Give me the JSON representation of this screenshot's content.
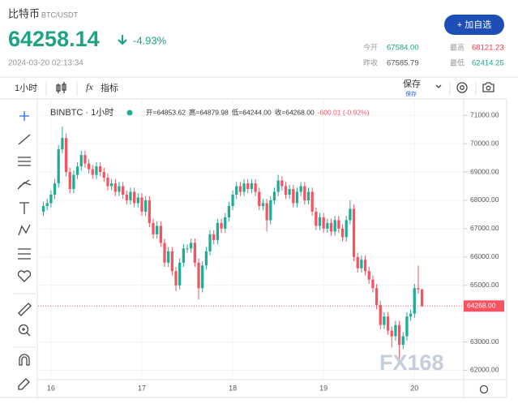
{
  "header": {
    "title": "比特币",
    "pair": "BTC/USDT",
    "price": "64258.14",
    "change": "-4.93%",
    "time": "2024-03-20 02:13:34",
    "button": "+ 加自选",
    "stats": [
      {
        "label": "今开",
        "value": "67584.00"
      },
      {
        "label": "最高",
        "value": "68121.23"
      },
      {
        "label": "昨收",
        "value": "67585.79"
      },
      {
        "label": "最低",
        "value": "62414.25"
      }
    ]
  },
  "toolbar": {
    "interval": "1小时",
    "indicator_icon": "fx",
    "indicators": "指标",
    "save": "保存",
    "save_sub": "保存"
  },
  "chart_data": {
    "type": "candlestick",
    "legend": {
      "symbol": "BINBTC · 1小时",
      "items": [
        "开=64853.62",
        "高=64879.98",
        "低=64244.00",
        "收=64268.00",
        "-600.01 (-0.92%)"
      ]
    },
    "up_color": "#22ab94",
    "down_color": "#f7525f",
    "grid": true,
    "watermark": "FX168",
    "last_price_label": "64268.00",
    "x": [
      -2,
      -1,
      0,
      1,
      2,
      3,
      4,
      5,
      6,
      7,
      8,
      9,
      10,
      11,
      12,
      13,
      14,
      15,
      16,
      17,
      18,
      19,
      20,
      21,
      22,
      23,
      24,
      25,
      26,
      27,
      28,
      29,
      30,
      31,
      32,
      33,
      34,
      35,
      36,
      37,
      38,
      39,
      40,
      41,
      42,
      43,
      44,
      45,
      46,
      47,
      48,
      49,
      50,
      51,
      52,
      53,
      54,
      55,
      56,
      57,
      58,
      59,
      60,
      61,
      62,
      63,
      64,
      65,
      66,
      67,
      68,
      69,
      70,
      71,
      72,
      73,
      74,
      75,
      76,
      77,
      78,
      79,
      80,
      81,
      82,
      83,
      84,
      85,
      86,
      87,
      88,
      89,
      90,
      91,
      92,
      93,
      94,
      95,
      96,
      97,
      98
    ],
    "open": [
      67600,
      67800,
      67900,
      68200,
      68600,
      69800,
      70200,
      69000,
      68400,
      68900,
      69200,
      69600,
      69300,
      69100,
      68900,
      69200,
      69000,
      68800,
      68500,
      68600,
      68300,
      68500,
      68200,
      68000,
      68300,
      67900,
      68100,
      67600,
      68000,
      67200,
      66800,
      67100,
      66500,
      65800,
      66200,
      65500,
      65000,
      65800,
      66300,
      66300,
      66500,
      65800,
      64900,
      65700,
      66200,
      66800,
      66600,
      67200,
      67000,
      67400,
      67800,
      68200,
      68500,
      68300,
      68600,
      68400,
      68600,
      68300,
      67800,
      67900,
      67300,
      68000,
      68300,
      68700,
      68500,
      68200,
      68400,
      67900,
      68300,
      68500,
      68000,
      68300,
      67600,
      67100,
      67400,
      67000,
      67200,
      66900,
      67300,
      67000,
      66700,
      67300,
      67700,
      66000,
      65600,
      65900,
      65500,
      65200,
      64900,
      64300,
      63600,
      63900,
      63400,
      63200,
      63600,
      62900,
      63200,
      63900,
      64000,
      64900,
      64853.62
    ],
    "high": [
      67950,
      68050,
      68350,
      68750,
      69950,
      70600,
      70350,
      69150,
      69050,
      69350,
      69750,
      69750,
      69450,
      69250,
      69350,
      69350,
      69150,
      68950,
      68750,
      68750,
      68650,
      68650,
      68350,
      68450,
      68450,
      68250,
      68250,
      68150,
      68150,
      67350,
      67250,
      67250,
      66650,
      66350,
      66350,
      65650,
      65950,
      66450,
      66450,
      66650,
      66650,
      65950,
      65850,
      66350,
      66950,
      66950,
      67350,
      67350,
      67550,
      67950,
      68350,
      68650,
      68650,
      68750,
      68750,
      68750,
      68750,
      68450,
      68050,
      68050,
      68150,
      68450,
      68900,
      68850,
      68650,
      68550,
      68550,
      68450,
      68650,
      68650,
      68450,
      68450,
      67750,
      67550,
      67550,
      67350,
      67350,
      67450,
      67450,
      67150,
      67450,
      68000,
      67850,
      66150,
      66050,
      66050,
      65650,
      65350,
      65050,
      64450,
      64050,
      64050,
      63550,
      63750,
      63750,
      63350,
      64050,
      64150,
      65050,
      65700,
      64879.98
    ],
    "low": [
      67450,
      67650,
      67750,
      68050,
      68450,
      69650,
      68850,
      68250,
      68250,
      68750,
      69050,
      69150,
      68950,
      68750,
      68750,
      68850,
      68650,
      68350,
      68350,
      68150,
      68150,
      68050,
      67850,
      67850,
      67750,
      67750,
      67450,
      67450,
      67050,
      66650,
      66650,
      66350,
      65650,
      65650,
      65350,
      64800,
      64850,
      65650,
      66150,
      66150,
      65650,
      64500,
      64750,
      65550,
      66050,
      66450,
      66450,
      66850,
      66850,
      67250,
      67650,
      68050,
      68150,
      68150,
      68250,
      68250,
      68150,
      67650,
      67650,
      66900,
      67150,
      67850,
      68150,
      68350,
      68050,
      68050,
      67750,
      67750,
      68150,
      67850,
      67850,
      67450,
      66950,
      66950,
      66850,
      66850,
      66750,
      66750,
      66850,
      66550,
      66550,
      67150,
      65850,
      65450,
      65450,
      65350,
      65050,
      64750,
      64150,
      63450,
      63450,
      63250,
      62800,
      63050,
      62400,
      62750,
      63050,
      63750,
      63850,
      64700,
      64244
    ],
    "close": [
      67800,
      67900,
      68200,
      68600,
      69800,
      70200,
      69000,
      68400,
      68900,
      69200,
      69600,
      69300,
      69100,
      68900,
      69200,
      69000,
      68800,
      68500,
      68600,
      68300,
      68500,
      68200,
      68000,
      68300,
      67900,
      68100,
      67600,
      68000,
      67200,
      66800,
      67100,
      66500,
      65800,
      66200,
      65500,
      65000,
      65800,
      66300,
      66300,
      66500,
      65800,
      64900,
      65700,
      66200,
      66800,
      66600,
      67200,
      67000,
      67400,
      67800,
      68200,
      68500,
      68300,
      68600,
      68400,
      68600,
      68300,
      67800,
      67900,
      67300,
      68000,
      68300,
      68700,
      68500,
      68200,
      68400,
      67900,
      68300,
      68500,
      68000,
      68300,
      67600,
      67100,
      67400,
      67000,
      67200,
      66900,
      67300,
      67000,
      66700,
      67300,
      67700,
      66000,
      65600,
      65900,
      65500,
      65200,
      64900,
      64300,
      63600,
      63900,
      63400,
      63200,
      63600,
      62900,
      63200,
      63900,
      64000,
      64900,
      64853.62,
      64268
    ],
    "xlim": [
      -3.4,
      109
    ],
    "xticks": [
      {
        "value": 0,
        "label": "16"
      },
      {
        "value": 24,
        "label": "17"
      },
      {
        "value": 48,
        "label": "18"
      },
      {
        "value": 72,
        "label": "19"
      },
      {
        "value": 96,
        "label": "20"
      }
    ],
    "ylim": [
      61670,
      71580
    ],
    "yticks": [
      {
        "value": 62000,
        "label": "62000.00"
      },
      {
        "value": 63000,
        "label": "63000.00"
      },
      {
        "value": 65000,
        "label": "65000.00"
      },
      {
        "value": 66000,
        "label": "66000.00"
      },
      {
        "value": 67000,
        "label": "67000.00"
      },
      {
        "value": 68000,
        "label": "68000.00"
      },
      {
        "value": 69000,
        "label": "69000.00"
      },
      {
        "value": 70000,
        "label": "70000.00"
      },
      {
        "value": 71000,
        "label": "71000.00"
      }
    ]
  }
}
